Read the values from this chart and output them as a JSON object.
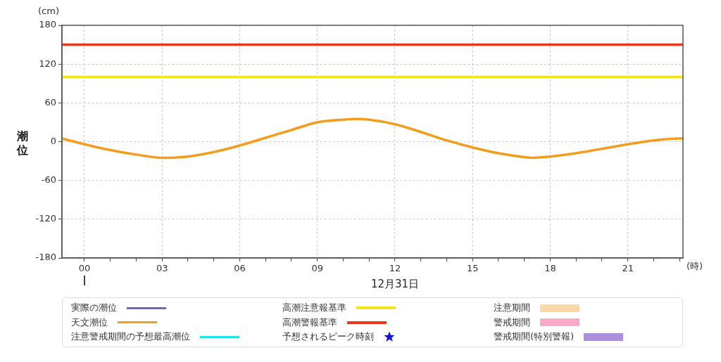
{
  "chart_data": {
    "type": "line",
    "ylabel": "潮位",
    "xlabel": "12月31日",
    "annotations": [
      "(cm)",
      "(時)"
    ],
    "x": [
      -0.87,
      0,
      1,
      2,
      3,
      4,
      5,
      6,
      7,
      8,
      9,
      10,
      10.5,
      11,
      12,
      13,
      14,
      15,
      16,
      17,
      17.3,
      18,
      19,
      20,
      21,
      22,
      23,
      23.13
    ],
    "series": [
      {
        "name": "実際の潮位",
        "color": "#7d60b4",
        "values": [
          null,
          null,
          null,
          null,
          null,
          null,
          null,
          null,
          null,
          null,
          null,
          null,
          null,
          null,
          null,
          null,
          null,
          null,
          null,
          null,
          null,
          null,
          null,
          null,
          null,
          null,
          null,
          null
        ]
      },
      {
        "name": "天文潮位",
        "color": "#f39c1e",
        "values": [
          5,
          -4,
          -13,
          -20,
          -25,
          -23,
          -16,
          -6,
          6,
          18,
          30,
          34,
          35,
          34,
          27,
          15,
          2,
          -9,
          -18,
          -24,
          -25,
          -23,
          -18,
          -11,
          -4,
          2,
          5,
          5
        ]
      },
      {
        "name": "注意警戒期間の予想最高潮位",
        "color": "#22e6ef",
        "values": [
          null,
          null,
          null,
          null,
          null,
          null,
          null,
          null,
          null,
          null,
          null,
          null,
          null,
          null,
          null,
          null,
          null,
          null,
          null,
          null,
          null,
          null,
          null,
          null,
          null,
          null,
          null,
          null
        ]
      },
      {
        "name": "予想されるピーク時刻",
        "type": "scatter",
        "marker": "star",
        "color": "#1010e0",
        "values": [
          null,
          null,
          null,
          null,
          null,
          null,
          null,
          null,
          null,
          null,
          null,
          null,
          null,
          null,
          null,
          null,
          null,
          null,
          null,
          null,
          null,
          null,
          null,
          null,
          null,
          null,
          null,
          null
        ]
      },
      {
        "name": "注意期間",
        "type": "area",
        "color": "#fdd9a9",
        "values": [
          null,
          null,
          null,
          null,
          null,
          null,
          null,
          null,
          null,
          null,
          null,
          null,
          null,
          null,
          null,
          null,
          null,
          null,
          null,
          null,
          null,
          null,
          null,
          null,
          null,
          null,
          null,
          null
        ]
      },
      {
        "name": "警戒期間",
        "type": "area",
        "color": "#f9aac9",
        "values": [
          null,
          null,
          null,
          null,
          null,
          null,
          null,
          null,
          null,
          null,
          null,
          null,
          null,
          null,
          null,
          null,
          null,
          null,
          null,
          null,
          null,
          null,
          null,
          null,
          null,
          null,
          null,
          null
        ]
      },
      {
        "name": "警戒期間(特別警報)",
        "type": "area",
        "color": "#ab8fdf",
        "values": [
          null,
          null,
          null,
          null,
          null,
          null,
          null,
          null,
          null,
          null,
          null,
          null,
          null,
          null,
          null,
          null,
          null,
          null,
          null,
          null,
          null,
          null,
          null,
          null,
          null,
          null,
          null,
          null
        ]
      }
    ],
    "ref_lines": [
      {
        "axis": "y",
        "value": 100,
        "label": "高潮注意報基準",
        "color": "#f2e51d"
      },
      {
        "axis": "y",
        "value": 150,
        "label": "高潮警報基準",
        "color": "#e8391d"
      }
    ],
    "xlim": [
      -0.87,
      23.13
    ],
    "xticks": [
      {
        "value": 0,
        "label": "00"
      },
      {
        "value": 1,
        "label": null
      },
      {
        "value": 2,
        "label": null
      },
      {
        "value": 3,
        "label": "03"
      },
      {
        "value": 4,
        "label": null
      },
      {
        "value": 5,
        "label": null
      },
      {
        "value": 6,
        "label": "06"
      },
      {
        "value": 7,
        "label": null
      },
      {
        "value": 8,
        "label": null
      },
      {
        "value": 9,
        "label": "09"
      },
      {
        "value": 10,
        "label": null
      },
      {
        "value": 11,
        "label": null
      },
      12,
      {
        "value": 13,
        "label": null
      },
      {
        "value": 14,
        "label": null
      },
      15,
      {
        "value": 16,
        "label": null
      },
      {
        "value": 17,
        "label": null
      },
      18,
      {
        "value": 19,
        "label": null
      },
      {
        "value": 20,
        "label": null
      },
      21,
      {
        "value": 22,
        "label": null
      },
      {
        "value": 23,
        "label": null
      }
    ],
    "ylim": [
      -180,
      180
    ],
    "yticks": [
      -180,
      -120,
      -60,
      0,
      60,
      120,
      180
    ],
    "grid": true,
    "legend": "bottom",
    "marker": "none"
  }
}
